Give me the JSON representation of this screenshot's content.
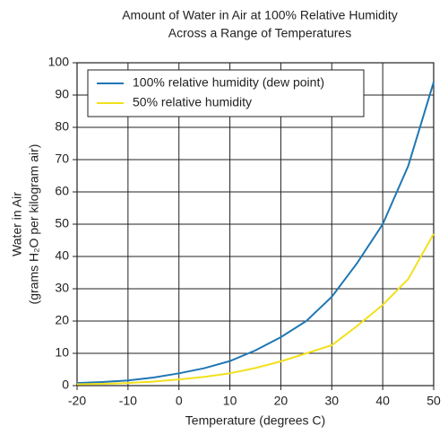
{
  "chart_data": {
    "type": "line",
    "title_lines": [
      "Amount of Water in Air at 100% Relative Humidity",
      "Across a Range of Temperatures"
    ],
    "x_label": "Temperature (degrees C)",
    "y_label_lines": [
      "Water in Air",
      "(grams H₂O per kilogram air)"
    ],
    "x": [
      -20,
      -15,
      -10,
      -5,
      0,
      5,
      10,
      15,
      20,
      25,
      30,
      35,
      40,
      45,
      50
    ],
    "series": [
      {
        "name": "100% relative humidity (dew point)",
        "color": "#1f77b4",
        "values": [
          0.8,
          1.1,
          1.6,
          2.5,
          3.8,
          5.4,
          7.6,
          10.9,
          15,
          20,
          27.5,
          38,
          50,
          68,
          94
        ]
      },
      {
        "name": "50% relative humidity",
        "color": "#f2e01c",
        "values": [
          0.4,
          0.55,
          0.8,
          1.25,
          1.9,
          2.7,
          3.8,
          5.45,
          7.5,
          10,
          12.5,
          18.5,
          25,
          33,
          47
        ]
      }
    ],
    "xlim": [
      -20,
      50
    ],
    "xticks": [
      -20,
      -10,
      0,
      10,
      20,
      30,
      40,
      50
    ],
    "ylim": [
      0,
      100
    ],
    "yticks": [
      0,
      10,
      20,
      30,
      40,
      50,
      60,
      70,
      80,
      90,
      100
    ],
    "grid": true,
    "legend": "upper-left"
  }
}
